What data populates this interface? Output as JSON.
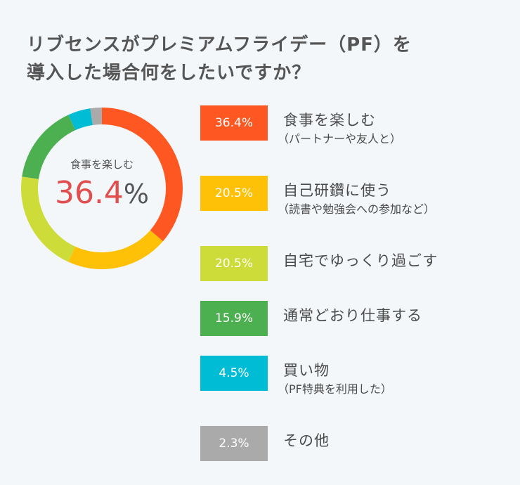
{
  "title": {
    "line1": "リブセンスがプレミアムフライデー（PF）を",
    "line2": "導入した場合何をしたいですか？"
  },
  "center": {
    "label": "食事を楽しむ",
    "value": "36.4",
    "unit": "%"
  },
  "colors": {
    "background": "#f4f7fa",
    "highlight": "#e24d4d",
    "series": [
      "#ff5722",
      "#ffc107",
      "#cddc39",
      "#4caf50",
      "#00bcd4",
      "#aaaaaa"
    ]
  },
  "chart_data": {
    "type": "pie",
    "style": "donut",
    "categories": [
      "食事を楽しむ",
      "自己研鑽に使う",
      "自宅でゆっくり過ごす",
      "通常どおり仕事する",
      "買い物",
      "その他"
    ],
    "subtitles": [
      "（パートナーや友人と）",
      "（読書や勉強会への参加など）",
      "",
      "",
      "（PF特典を利用した）",
      ""
    ],
    "values": [
      36.4,
      20.5,
      20.5,
      15.9,
      4.5,
      2.3
    ],
    "value_labels": [
      "36.4%",
      "20.5%",
      "20.5%",
      "15.9%",
      "4.5%",
      "2.3%"
    ],
    "legend_position": "right"
  }
}
